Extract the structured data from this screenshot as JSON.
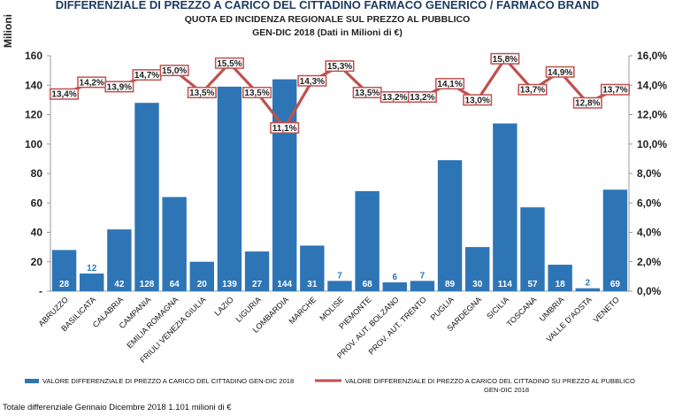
{
  "chart_data": {
    "type": "bar",
    "title": "DIFFERENZIALE DI PREZZO A CARICO DEL CITTADINO FARMACO GENERICO / FARMACO BRAND",
    "subtitle_line1": "QUOTA ED INCIDENZA REGIONALE SUL PREZZO AL PUBBLICO",
    "subtitle_line2": "GEN-DIC 2018 (Dati in Milioni di €)",
    "ylabel": "Milioni",
    "ylim": [
      0,
      160
    ],
    "y_ticks": [
      "-",
      "20",
      "40",
      "60",
      "80",
      "100",
      "120",
      "140",
      "160"
    ],
    "y2lim": [
      0,
      16
    ],
    "y2_ticks": [
      "0,0%",
      "2,0%",
      "4,0%",
      "6,0%",
      "8,0%",
      "10,0%",
      "12,0%",
      "14,0%",
      "16,0%"
    ],
    "categories": [
      "ABRUZZO",
      "BASILICATA",
      "CALABRIA",
      "CAMPANIA",
      "EMILIA ROMAGNA",
      "FRIULI VENEZIA GIULIA",
      "LAZIO",
      "LIGURIA",
      "LOMBARDIA",
      "MARCHE",
      "MOLISE",
      "PIEMONTE",
      "PROV. AUT. BOLZANO",
      "PROV. AUT. TRENTO",
      "PUGLIA",
      "SARDEGNA",
      "SICILIA",
      "TOSCANA",
      "UMBRIA",
      "VALLE D'AOSTA",
      "VENETO"
    ],
    "series": [
      {
        "name": "VALORE DIFFERENZIALE DI PREZZO A CARICO DEL CITTADINO GEN-DIC 2018",
        "type": "bar",
        "axis": "left",
        "color": "#2e75b6",
        "values": [
          28,
          12,
          42,
          128,
          64,
          20,
          139,
          27,
          144,
          31,
          7,
          68,
          6,
          7,
          89,
          30,
          114,
          57,
          18,
          2,
          69
        ],
        "labels": [
          "28",
          "12",
          "42",
          "128",
          "64",
          "20",
          "139",
          "27",
          "144",
          "31",
          "7",
          "68",
          "6",
          "7",
          "89",
          "30",
          "114",
          "57",
          "18",
          "2",
          "69"
        ]
      },
      {
        "name": "VALORE DIFFERENZIALE DI PREZZO A CARICO DEL CITTADINO SU PREZZO AL PUBBLICO GEN-DIC 2018",
        "type": "line",
        "axis": "right",
        "color": "#c0504d",
        "values": [
          13.4,
          14.2,
          13.9,
          14.7,
          15.0,
          13.5,
          15.5,
          13.5,
          11.1,
          14.3,
          15.3,
          13.5,
          13.2,
          13.2,
          14.1,
          13.0,
          15.8,
          13.7,
          14.9,
          12.8,
          13.7
        ],
        "labels": [
          "13,4%",
          "14,2%",
          "13,9%",
          "14,7%",
          "15,0%",
          "13,5%",
          "15,5%",
          "13,5%",
          "11,1%",
          "14,3%",
          "15,3%",
          "13,5%",
          "13,2%",
          "13,2%",
          "14,1%",
          "13,0%",
          "15,8%",
          "13,7%",
          "14,9%",
          "12,8%",
          "13,7%"
        ]
      }
    ],
    "legend_bar_line1": "VALORE DIFFERENZIALE DI PREZZO A CARICO DEL CITTADINO GEN-DIC 2018",
    "legend_line_line1": "VALORE DIFFERENZIALE DI PREZZO A CARICO DEL CITTADINO  SU PREZZO AL PUBBLICO",
    "legend_line_line2": "GEN-DIC 2018",
    "footnote": "Totale differenziale Gennaio Dicembre 2018 1.101 milioni di €",
    "legend_position": "bottom",
    "grid": false
  }
}
